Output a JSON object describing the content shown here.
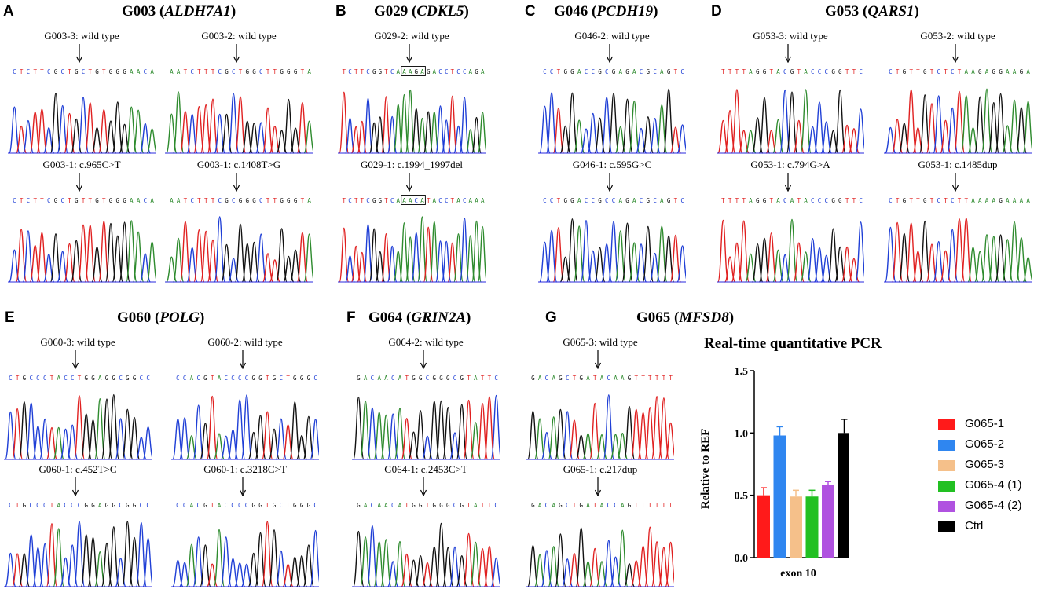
{
  "groups": [
    {
      "letter": "A",
      "id": "G003",
      "gene": "ALDH7A1"
    },
    {
      "letter": "B",
      "id": "G029",
      "gene": "CDKL5"
    },
    {
      "letter": "C",
      "id": "G046",
      "gene": "PCDH19"
    },
    {
      "letter": "D",
      "id": "G053",
      "gene": "QARS1"
    },
    {
      "letter": "E",
      "id": "G060",
      "gene": "POLG"
    },
    {
      "letter": "F",
      "id": "G064",
      "gene": "GRIN2A"
    },
    {
      "letter": "G",
      "id": "G065",
      "gene": "MFSD8"
    }
  ],
  "panels": [
    {
      "label": "G003-3: wild type",
      "seq": "CTCTTCGCTGCTGTGGGAACA"
    },
    {
      "label": "G003-2: wild type",
      "seq": "AATCTTTCGCTGGCTTGGGTA"
    },
    {
      "label": "G003-1: c.965C>T",
      "seq": "CTCTTCGCTGTTGTGGGAACA"
    },
    {
      "label": "G003-1: c.1408T>G",
      "seq": "AATCTTTCGCGGGCTTGGGTA"
    },
    {
      "label": "G029-2: wild type",
      "seq": "TCTTCGGTCAAAGAGACCTCCAGA"
    },
    {
      "label": "G029-1: c.1994_1997del",
      "seq": "TCTTCGGTCAAACATACCTACAAA"
    },
    {
      "label": "G046-2: wild type",
      "seq": "CCTGGACCGCGAGACGCAGTC"
    },
    {
      "label": "G046-1: c.595G>C",
      "seq": "CCTGGACCGCCAGACGCAGTC"
    },
    {
      "label": "G053-3: wild type",
      "seq": "TTTTAGGTACGTACCCGGTTC"
    },
    {
      "label": "G053-2: wild type",
      "seq": "CTGTTGTCTCTAAGAGGAAGA"
    },
    {
      "label": "G053-1: c.794G>A",
      "seq": "TTTTAGGTACATACCCGGTTC"
    },
    {
      "label": "G053-1: c.1485dup",
      "seq": "CTGTTGTCTCTTAAAAGAAAA"
    },
    {
      "label": "G060-3: wild type",
      "seq": "CTGCCCTACCTGGAGGCGGCC"
    },
    {
      "label": "G060-2: wild type",
      "seq": "CCACGTACCCCGGTGCTGGGC"
    },
    {
      "label": "G060-1: c.452T>C",
      "seq": "CTGCCCTACCCGGAGGCGGCC"
    },
    {
      "label": "G060-1: c.3218C>T",
      "seq": "CCACGTACCCCGGTGCTGGGC"
    },
    {
      "label": "G064-2: wild type",
      "seq": "GACAACATGGCGGGCGTATTC"
    },
    {
      "label": "G064-1: c.2453C>T",
      "seq": "GACAACATGGTGGGCGTATTC"
    },
    {
      "label": "G065-3: wild type",
      "seq": "GACAGCTGATACAAGTTTTTT"
    },
    {
      "label": "G065-1: c.217dup",
      "seq": "GACAGCTGATACCAGTTTTTT"
    }
  ],
  "base_colors": {
    "A": "#2e8b2e",
    "C": "#1f3fd6",
    "G": "#111111",
    "T": "#e02020"
  },
  "chart_data": {
    "type": "bar",
    "title": "Real-time quantitative PCR",
    "xlabel": "exon 10",
    "ylabel": "Relative to REF",
    "ylim": [
      0,
      1.5
    ],
    "yticks": [
      "0.0",
      "0.5",
      "1.0",
      "1.5"
    ],
    "categories": [
      "G065-1",
      "G065-2",
      "G065-3",
      "G065-4 (1)",
      "G065-4 (2)",
      "Ctrl"
    ],
    "values": [
      0.5,
      0.98,
      0.49,
      0.49,
      0.58,
      1.0
    ],
    "errors": [
      0.06,
      0.07,
      0.05,
      0.05,
      0.03,
      0.11
    ],
    "colors": [
      "#ff1a1a",
      "#2f86f0",
      "#f5c08a",
      "#22c022",
      "#b052e0",
      "#000000"
    ]
  }
}
